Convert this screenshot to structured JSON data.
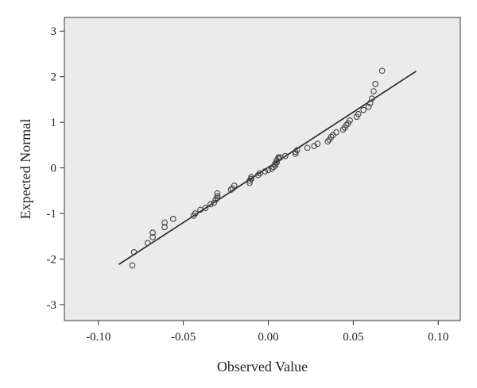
{
  "chart_data": {
    "type": "scatter",
    "title": "",
    "xlabel": "Observed Value",
    "ylabel": "Expected Normal",
    "xlim": [
      -0.12,
      0.113
    ],
    "ylim": [
      -3.35,
      3.3
    ],
    "xticks": [
      -0.1,
      -0.05,
      0.0,
      0.05,
      0.1
    ],
    "xtick_labels": [
      "-0.10",
      "-0.05",
      "0.00",
      "0.05",
      "0.10"
    ],
    "yticks": [
      -3,
      -2,
      -1,
      0,
      1,
      2,
      3
    ],
    "ytick_labels": [
      "-3",
      "-2",
      "-1",
      "0",
      "1",
      "2",
      "3"
    ],
    "grid": false,
    "colors": {
      "plot_background": "#ebebeb",
      "marker_stroke": "#444444",
      "line": "#222222",
      "frame": "#333333"
    },
    "reference_line": {
      "x": [
        -0.088,
        0.087
      ],
      "y": [
        -2.12,
        2.12
      ]
    },
    "points": {
      "x": [
        -0.08,
        -0.079,
        -0.071,
        -0.068,
        -0.068,
        -0.061,
        -0.061,
        -0.056,
        -0.044,
        -0.043,
        -0.04,
        -0.037,
        -0.034,
        -0.032,
        -0.031,
        -0.03,
        -0.03,
        -0.03,
        -0.022,
        -0.021,
        -0.02,
        -0.011,
        -0.011,
        -0.01,
        -0.01,
        -0.006,
        -0.005,
        -0.002,
        0.0,
        0.002,
        0.003,
        0.004,
        0.004,
        0.005,
        0.005,
        0.006,
        0.006,
        0.007,
        0.01,
        0.016,
        0.016,
        0.017,
        0.023,
        0.027,
        0.029,
        0.035,
        0.036,
        0.037,
        0.038,
        0.04,
        0.044,
        0.045,
        0.046,
        0.047,
        0.048,
        0.052,
        0.053,
        0.056,
        0.059,
        0.06,
        0.061,
        0.062,
        0.063,
        0.067
      ],
      "y": [
        -2.14,
        -1.85,
        -1.65,
        -1.52,
        -1.42,
        -1.3,
        -1.2,
        -1.12,
        -1.05,
        -1.0,
        -0.92,
        -0.88,
        -0.8,
        -0.77,
        -0.7,
        -0.66,
        -0.62,
        -0.56,
        -0.48,
        -0.45,
        -0.39,
        -0.33,
        -0.28,
        -0.24,
        -0.2,
        -0.16,
        -0.12,
        -0.08,
        -0.05,
        -0.02,
        0.02,
        0.05,
        0.09,
        0.12,
        0.17,
        0.2,
        0.23,
        0.23,
        0.26,
        0.31,
        0.35,
        0.39,
        0.44,
        0.48,
        0.53,
        0.58,
        0.62,
        0.68,
        0.72,
        0.78,
        0.84,
        0.88,
        0.94,
        0.98,
        1.04,
        1.12,
        1.18,
        1.27,
        1.34,
        1.42,
        1.52,
        1.68,
        1.84,
        2.13
      ]
    }
  }
}
